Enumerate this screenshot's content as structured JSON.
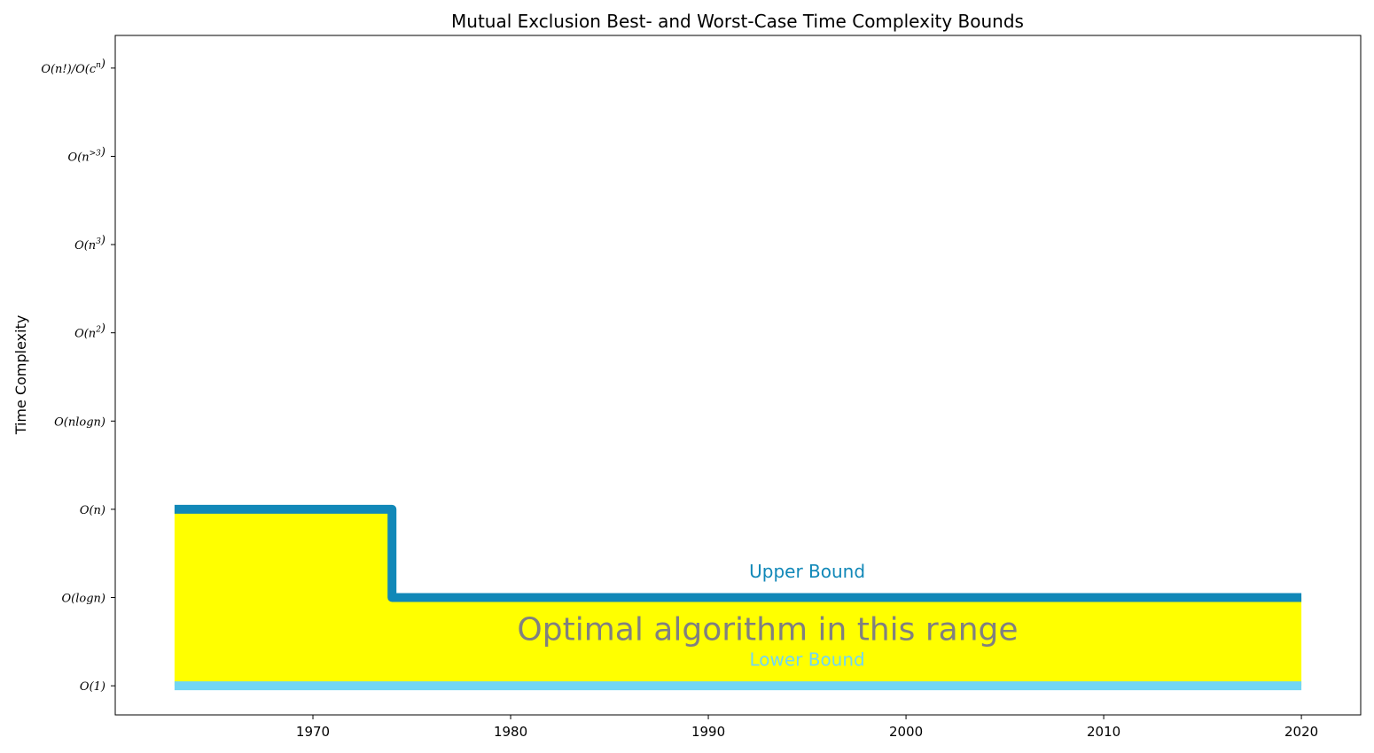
{
  "chart_data": {
    "type": "line",
    "title": "Mutual Exclusion Best- and Worst-Case Time Complexity Bounds",
    "xlabel": "",
    "ylabel": "Time Complexity",
    "xlim": [
      1960,
      2023
    ],
    "xticks": [
      1970,
      1980,
      1990,
      2000,
      2010,
      2020
    ],
    "ylim": [
      -0.33,
      7.37
    ],
    "yticks": [
      {
        "value": 0,
        "parts": [
          [
            "O(1)",
            ""
          ]
        ]
      },
      {
        "value": 1,
        "parts": [
          [
            "O(logn)",
            ""
          ]
        ]
      },
      {
        "value": 2,
        "parts": [
          [
            "O(n)",
            ""
          ]
        ]
      },
      {
        "value": 3,
        "parts": [
          [
            "O(nlogn)",
            ""
          ]
        ]
      },
      {
        "value": 4,
        "parts": [
          [
            "O(n",
            ""
          ],
          [
            "2",
            "up"
          ],
          [
            ")",
            ""
          ]
        ]
      },
      {
        "value": 5,
        "parts": [
          [
            "O(n",
            ""
          ],
          [
            "3",
            "up"
          ],
          [
            ")",
            ""
          ]
        ]
      },
      {
        "value": 6,
        "parts": [
          [
            "O(n",
            ""
          ],
          [
            ">3",
            "up"
          ],
          [
            ")",
            ""
          ]
        ]
      },
      {
        "value": 7,
        "parts": [
          [
            "O(n!)/O(c",
            ""
          ],
          [
            "n",
            "up"
          ],
          [
            ")",
            ""
          ]
        ]
      }
    ],
    "grid": false,
    "series": [
      {
        "name": "Upper Bound",
        "color": "#1188b8",
        "step": true,
        "points": [
          [
            1963,
            2
          ],
          [
            1974,
            2
          ],
          [
            1974,
            1
          ],
          [
            2020,
            1
          ]
        ]
      },
      {
        "name": "Lower Bound",
        "color": "#72d6f4",
        "step": true,
        "points": [
          [
            1963,
            0
          ],
          [
            2020,
            0
          ]
        ]
      }
    ],
    "fill": {
      "color": "#ffff00",
      "between": [
        "Lower Bound",
        "Upper Bound"
      ],
      "x_range": [
        1963,
        2020
      ]
    },
    "annotations": [
      {
        "text": "Upper Bound",
        "x": 1995,
        "y": 1.28,
        "color": "#1188b8",
        "size": "medium"
      },
      {
        "text": "Optimal algorithm in this range",
        "x": 1993,
        "y": 0.62,
        "color": "#808080",
        "size": "large"
      },
      {
        "text": "Lower Bound",
        "x": 1995,
        "y": 0.28,
        "color": "#72d6f4",
        "size": "medium"
      }
    ]
  }
}
